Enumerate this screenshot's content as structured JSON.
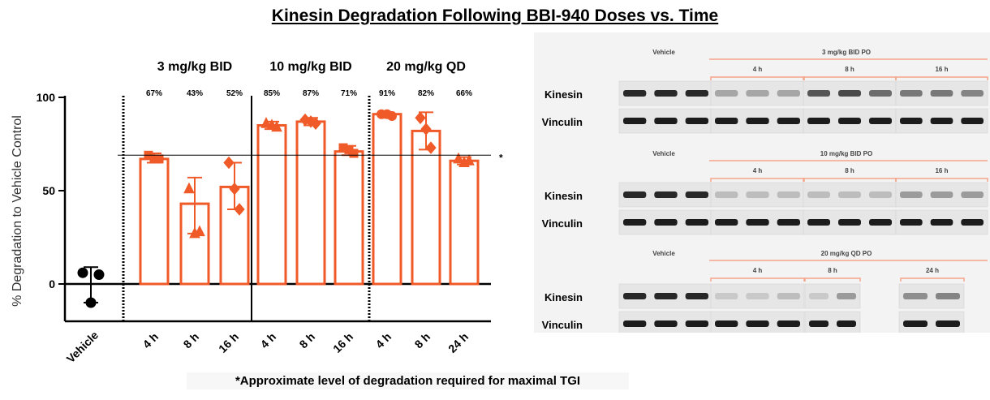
{
  "title": "Kinesin Degradation Following BBI-940 Doses vs. Time",
  "footnote": "*Approximate level of degradation required for maximal TGI",
  "colors": {
    "accent": "#f05a28",
    "axis": "#000000",
    "blot_line": "#f4a48a"
  },
  "chart_data": {
    "type": "bar",
    "ylabel": "% Degradation to Vehicle Control",
    "ylim": [
      -20,
      100
    ],
    "yticks": [
      0,
      50,
      100
    ],
    "threshold": {
      "value": 69,
      "marker": "*"
    },
    "vehicle": {
      "label": "Vehicle",
      "points": [
        6,
        5,
        -10
      ],
      "err_low": -10,
      "err_high": 9
    },
    "groups": [
      {
        "label": "3 mg/kg BID",
        "bars": [
          {
            "label": "4 h",
            "value": 67,
            "pct_label": "67%",
            "points": [
              69,
              67,
              67
            ],
            "marker": "square",
            "err_low": 65,
            "err_high": 70
          },
          {
            "label": "8 h",
            "value": 43,
            "pct_label": "43%",
            "points": [
              51,
              28,
              27
            ],
            "marker": "triangle",
            "err_low": 27,
            "err_high": 57
          },
          {
            "label": "16 h",
            "value": 52,
            "pct_label": "52%",
            "points": [
              65,
              40,
              51
            ],
            "marker": "diamond",
            "err_low": 40,
            "err_high": 65
          }
        ]
      },
      {
        "label": "10 mg/kg BID",
        "bars": [
          {
            "label": "4 h",
            "value": 85,
            "pct_label": "85%",
            "points": [
              86,
              84,
              85
            ],
            "marker": "triangle",
            "err_low": 83,
            "err_high": 87
          },
          {
            "label": "8 h",
            "value": 87,
            "pct_label": "87%",
            "points": [
              88,
              86,
              87
            ],
            "marker": "diamond",
            "err_low": 85,
            "err_high": 89
          },
          {
            "label": "16 h",
            "value": 71,
            "pct_label": "71%",
            "points": [
              73,
              70,
              72
            ],
            "marker": "square",
            "err_low": 69,
            "err_high": 74
          }
        ]
      },
      {
        "label": "20 mg/kg QD",
        "bars": [
          {
            "label": "4 h",
            "value": 91,
            "pct_label": "91%",
            "points": [
              91,
              90,
              91
            ],
            "marker": "circle",
            "err_low": 89,
            "err_high": 92
          },
          {
            "label": "8 h",
            "value": 82,
            "pct_label": "82%",
            "points": [
              89,
              73,
              83
            ],
            "marker": "diamond",
            "err_low": 72,
            "err_high": 92
          },
          {
            "label": "24 h",
            "value": 66,
            "pct_label": "66%",
            "points": [
              67,
              66,
              65
            ],
            "marker": "triangle",
            "err_low": 64,
            "err_high": 68
          }
        ]
      }
    ]
  },
  "blots": {
    "panels": [
      {
        "vehicle_label": "Vehicle",
        "dose_label": "3 mg/kg BID PO",
        "timepoints": [
          "4 h",
          "8 h",
          "16 h"
        ],
        "rows": [
          {
            "label": "Kinesin",
            "bands": [
              [
                0.85,
                0.85,
                0.85
              ],
              [
                0.3,
                0.3,
                0.3
              ],
              [
                0.65,
                0.7,
                0.55
              ],
              [
                0.5,
                0.5,
                0.45
              ]
            ]
          },
          {
            "label": "Vinculin",
            "bands": [
              [
                0.9,
                0.9,
                0.9
              ],
              [
                0.9,
                0.9,
                0.9
              ],
              [
                0.9,
                0.9,
                0.9
              ],
              [
                0.9,
                0.9,
                0.9
              ]
            ]
          }
        ]
      },
      {
        "vehicle_label": "Vehicle",
        "dose_label": "10 mg/kg BID PO",
        "timepoints": [
          "4 h",
          "8 h",
          "16 h"
        ],
        "rows": [
          {
            "label": "Kinesin",
            "bands": [
              [
                0.85,
                0.85,
                0.85
              ],
              [
                0.2,
                0.2,
                0.2
              ],
              [
                0.2,
                0.2,
                0.2
              ],
              [
                0.35,
                0.35,
                0.35
              ]
            ]
          },
          {
            "label": "Vinculin",
            "bands": [
              [
                0.9,
                0.9,
                0.9
              ],
              [
                0.9,
                0.9,
                0.9
              ],
              [
                0.9,
                0.9,
                0.9
              ],
              [
                0.9,
                0.9,
                0.9
              ]
            ]
          }
        ]
      },
      {
        "vehicle_label": "Vehicle",
        "dose_label": "20 mg/kg QD PO",
        "timepoints": [
          "4 h",
          "8 h",
          "24 h"
        ],
        "rows": [
          {
            "label": "Kinesin",
            "bands": [
              [
                0.85,
                0.85,
                0.85
              ],
              [
                0.15,
                0.15,
                0.2
              ],
              [
                0.15,
                0.35
              ],
              [
                0.4,
                0.45
              ]
            ]
          },
          {
            "label": "Vinculin",
            "bands": [
              [
                0.9,
                0.9,
                0.9
              ],
              [
                0.9,
                0.9,
                0.9
              ],
              [
                0.9,
                0.9
              ],
              [
                0.9,
                0.9
              ]
            ]
          }
        ]
      }
    ]
  }
}
